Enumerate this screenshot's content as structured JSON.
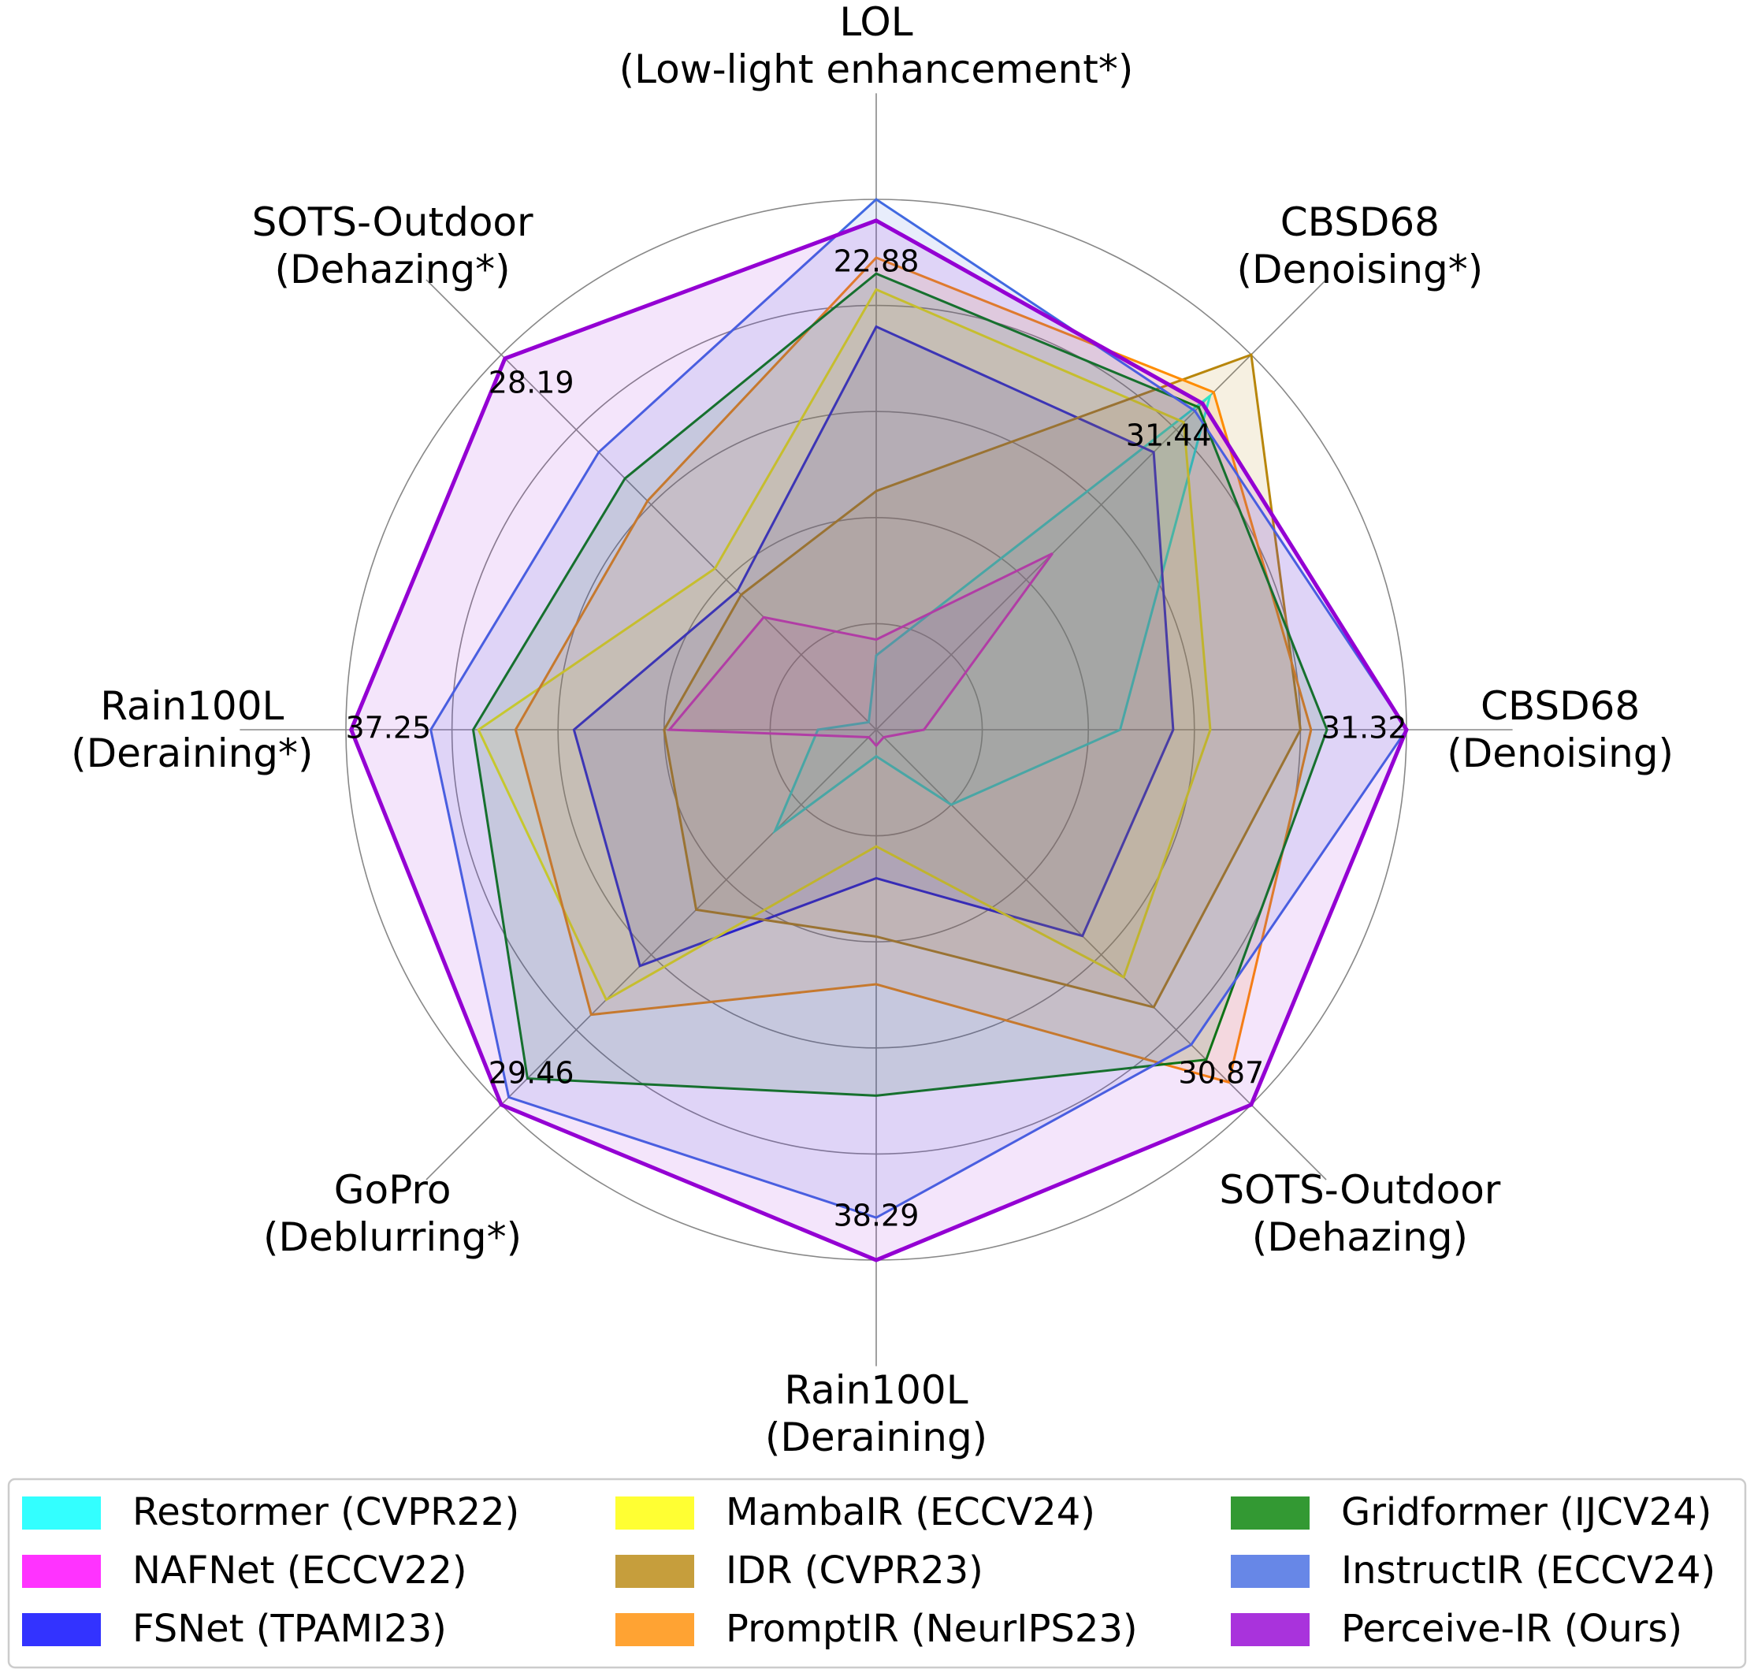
{
  "chart_data": {
    "type": "radar",
    "categories": [
      "LOL\n(Low-light enhancement*)",
      "CBSD68\n(Denoising*)",
      "CBSD68\n(Denoising)",
      "SOTS-Outdoor\n(Dehazing)",
      "Rain100L\n(Deraining)",
      "GoPro\n(Deblurring*)",
      "Rain100L\n(Deraining*)",
      "SOTS-Outdoor\n(Dehazing*)"
    ],
    "annotations": [
      "22.88",
      "31.44",
      "31.32",
      "30.87",
      "38.29",
      "29.46",
      "37.25",
      "28.19"
    ],
    "rlim": [
      0,
      1
    ],
    "rticks": [
      0.2,
      0.4,
      0.6,
      0.8,
      1.0
    ],
    "grid": true,
    "legend": "bottom",
    "series": [
      {
        "name": "Restormer (CVPR22)",
        "color": "#00ffff",
        "values": [
          0.14,
          0.89,
          0.46,
          0.2,
          0.05,
          0.27,
          0.11,
          0.02
        ]
      },
      {
        "name": "NAFNet (ECCV22)",
        "color": "#ff00ff",
        "values": [
          0.17,
          0.47,
          0.09,
          0.02,
          0.03,
          0.02,
          0.39,
          0.3
        ]
      },
      {
        "name": "FSNet (TPAMI23)",
        "color": "#0000ff",
        "values": [
          0.76,
          0.74,
          0.56,
          0.55,
          0.28,
          0.63,
          0.57,
          0.37
        ]
      },
      {
        "name": "MambaIR (ECCV24)",
        "color": "#ffff00",
        "values": [
          0.83,
          0.82,
          0.63,
          0.66,
          0.22,
          0.72,
          0.75,
          0.43
        ]
      },
      {
        "name": "IDR (CVPR23)",
        "color": "#b8860b",
        "values": [
          0.45,
          1.0,
          0.8,
          0.74,
          0.39,
          0.48,
          0.4,
          0.36
        ]
      },
      {
        "name": "PromptIR (NeurIPS23)",
        "color": "#ff8c00",
        "values": [
          0.89,
          0.9,
          0.82,
          0.94,
          0.48,
          0.76,
          0.68,
          0.61
        ]
      },
      {
        "name": "Gridformer (IJCV24)",
        "color": "#008000",
        "values": [
          0.86,
          0.86,
          0.85,
          0.88,
          0.69,
          0.93,
          0.76,
          0.67
        ]
      },
      {
        "name": "InstructIR (ECCV24)",
        "color": "#4169e1",
        "values": [
          1.0,
          0.85,
          1.0,
          0.84,
          0.92,
          0.98,
          0.84,
          0.74
        ]
      },
      {
        "name": "Perceive-IR (Ours)",
        "color": "#9400d3",
        "values": [
          0.96,
          0.87,
          1.0,
          1.0,
          1.0,
          1.0,
          0.99,
          0.99
        ]
      }
    ]
  }
}
